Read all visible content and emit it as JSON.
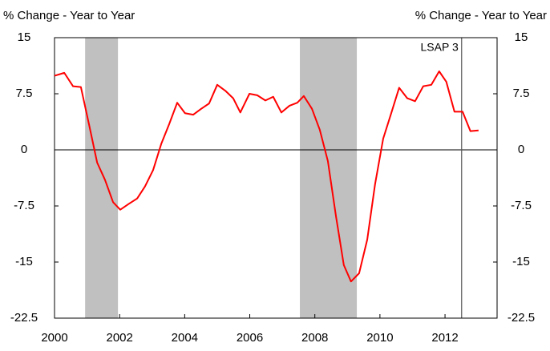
{
  "chart_data": {
    "type": "line",
    "y_label": "% Change - Year to Year",
    "y2_label": "% Change - Year to Year",
    "x": [
      2000.0,
      2000.3,
      2000.57,
      2000.81,
      2001.06,
      2001.31,
      2001.55,
      2001.8,
      2002.02,
      2002.29,
      2002.54,
      2002.78,
      2003.03,
      2003.28,
      2003.52,
      2003.77,
      2004.01,
      2004.26,
      2004.51,
      2004.75,
      2005.0,
      2005.25,
      2005.49,
      2005.71,
      2005.99,
      2006.23,
      2006.48,
      2006.72,
      2006.97,
      2007.22,
      2007.46,
      2007.66,
      2007.91,
      2008.15,
      2008.4,
      2008.65,
      2008.89,
      2009.11,
      2009.36,
      2009.61,
      2009.85,
      2010.1,
      2010.34,
      2010.59,
      2010.84,
      2011.08,
      2011.33,
      2011.58,
      2011.82,
      2012.04,
      2012.29,
      2012.54,
      2012.78,
      2013.03
    ],
    "series": [
      {
        "color": "#ff0000",
        "values": [
          9.9,
          10.3,
          8.5,
          8.4,
          3.4,
          -1.7,
          -4.0,
          -7.0,
          -8.0,
          -7.2,
          -6.5,
          -4.9,
          -2.7,
          0.8,
          3.4,
          6.3,
          4.9,
          4.7,
          5.5,
          6.2,
          8.7,
          7.9,
          6.9,
          5.0,
          7.5,
          7.3,
          6.6,
          7.1,
          5.0,
          5.9,
          6.3,
          7.2,
          5.5,
          2.7,
          -1.5,
          -8.9,
          -15.4,
          -17.6,
          -16.5,
          -12.0,
          -4.6,
          1.5,
          4.8,
          8.3,
          6.9,
          6.5,
          8.5,
          8.7,
          10.5,
          9.1,
          5.1,
          5.1,
          2.5,
          2.6
        ]
      }
    ],
    "xlim": [
      2000,
      2013.6
    ],
    "xticks": [
      2000,
      2002,
      2004,
      2006,
      2008,
      2010,
      2012
    ],
    "ylim": [
      -22.5,
      15
    ],
    "yticks": [
      15,
      7.5,
      0,
      -7.5,
      -15,
      -22.5
    ],
    "y2lim": [
      -22.5,
      15
    ],
    "y2ticks": [
      15,
      7.5,
      0,
      -7.5,
      -15,
      -22.5
    ],
    "shaded_regions": [
      [
        2000.94,
        2001.95
      ],
      [
        2007.54,
        2009.29
      ]
    ],
    "shade_color": "#c0c0c0",
    "annotations": [
      {
        "x": 2012.51,
        "text": "LSAP 3"
      }
    ]
  }
}
